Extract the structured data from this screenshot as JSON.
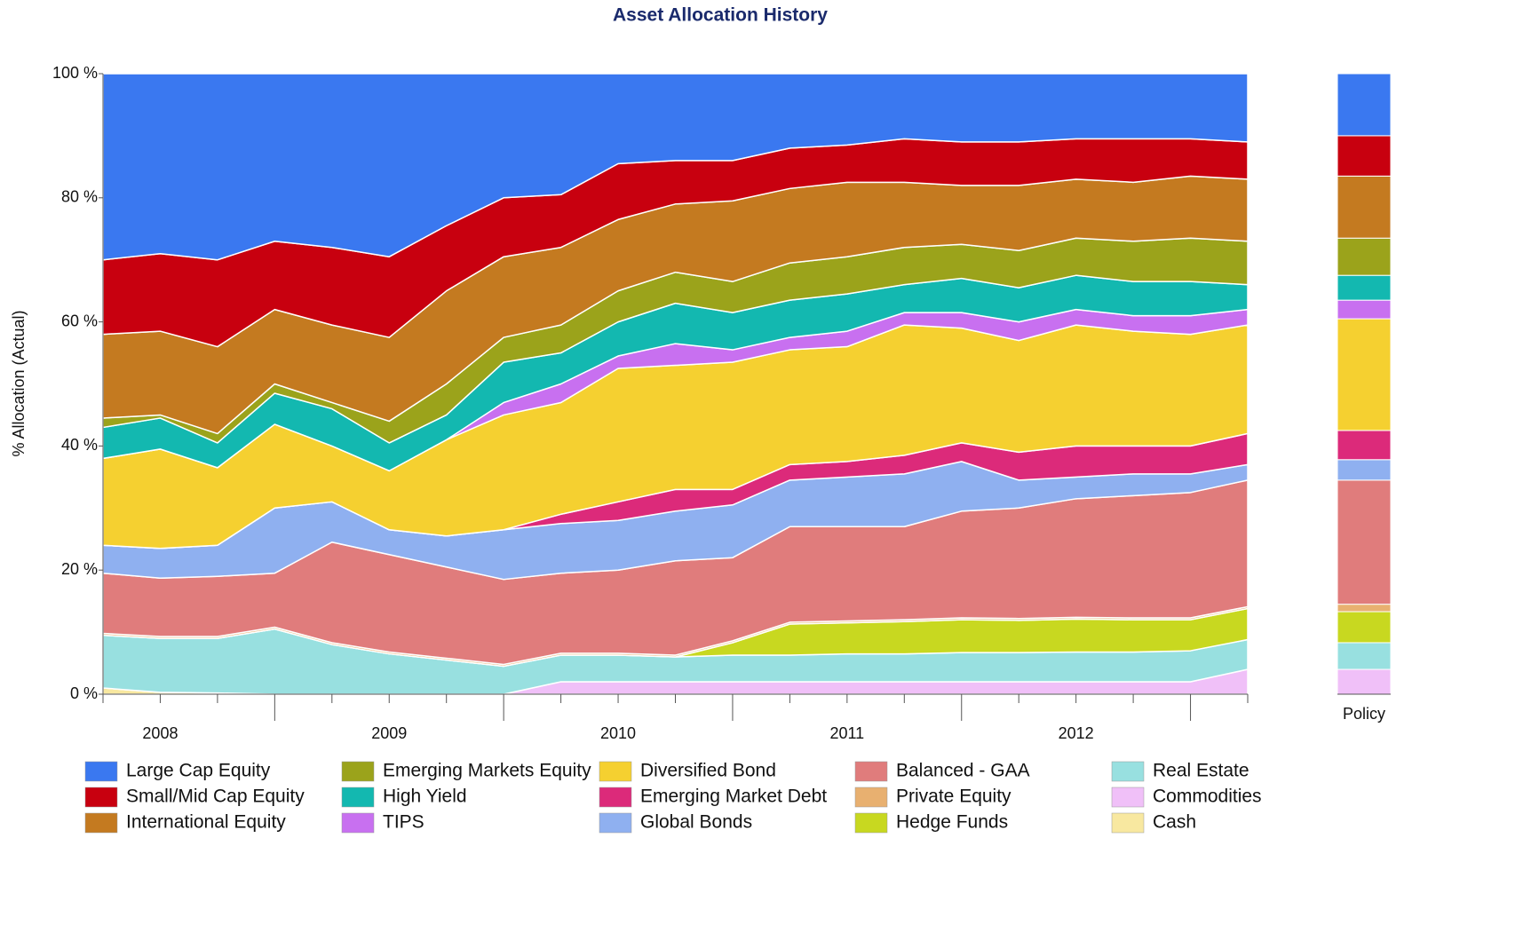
{
  "chart_data": {
    "type": "stacked-area",
    "title": "Asset Allocation History",
    "y_label": "% Allocation (Actual)",
    "categories": [
      null,
      "2008",
      null,
      null,
      null,
      "2009",
      null,
      null,
      null,
      "2010",
      null,
      null,
      null,
      "2011",
      null,
      null,
      null,
      "2012",
      null,
      null,
      null
    ],
    "ylim": [
      0,
      100
    ],
    "yticks": [
      {
        "value": 0,
        "label": "0 %"
      },
      {
        "value": 20,
        "label": "20 %"
      },
      {
        "value": 40,
        "label": "40 %"
      },
      {
        "value": 60,
        "label": "60 %"
      },
      {
        "value": 80,
        "label": "80 %"
      },
      {
        "value": 100,
        "label": "100 %"
      }
    ],
    "series": [
      {
        "name": "Large Cap Equity",
        "color": "#3a78f0",
        "values": [
          30,
          29,
          30,
          27,
          28,
          29.5,
          24.5,
          20,
          19.5,
          14.5,
          14,
          14,
          12,
          11.5,
          10.5,
          11,
          11,
          10.5,
          10.5,
          10.5,
          11
        ]
      },
      {
        "name": "Small/Mid Cap Equity",
        "color": "#c8000f",
        "values": [
          12,
          12.5,
          14,
          11,
          12.5,
          13,
          10.5,
          9.5,
          8.5,
          9,
          7,
          6.5,
          6.5,
          6,
          7,
          7,
          7,
          6.5,
          7,
          6,
          6
        ]
      },
      {
        "name": "International Equity",
        "color": "#c47a20",
        "values": [
          13.5,
          13.5,
          14,
          12,
          12.5,
          13.5,
          15,
          13,
          12.5,
          11.5,
          11,
          13,
          12,
          12,
          10.5,
          9.5,
          10.5,
          9.5,
          9.5,
          10,
          10
        ]
      },
      {
        "name": "Emerging Markets Equity",
        "color": "#9ba31b",
        "values": [
          1.5,
          0.5,
          1.5,
          1.5,
          1,
          3.5,
          5,
          4,
          4.5,
          5,
          5,
          5,
          6,
          6,
          6,
          5.5,
          6,
          6,
          6.5,
          7,
          7
        ]
      },
      {
        "name": "High Yield",
        "color": "#13b8b0",
        "values": [
          5,
          5,
          4,
          5,
          6,
          4.5,
          4,
          6.5,
          5,
          5.5,
          6.5,
          6,
          6,
          6,
          4.5,
          5.5,
          5.5,
          5.5,
          5.5,
          5.5,
          4
        ]
      },
      {
        "name": "TIPS",
        "color": "#c870f0",
        "values": [
          0,
          0,
          0,
          0,
          0,
          0,
          0,
          2,
          3,
          2,
          3.5,
          2,
          2,
          2.5,
          2,
          2.5,
          3,
          2.5,
          2.5,
          3,
          2.5
        ]
      },
      {
        "name": "Diversified Bond",
        "color": "#f5d030",
        "values": [
          14,
          16,
          12.5,
          13.5,
          9,
          9.5,
          15.5,
          18.5,
          18,
          21.5,
          20,
          20.5,
          18.5,
          18.5,
          21,
          18.5,
          18,
          19.5,
          18.5,
          18,
          17.5
        ]
      },
      {
        "name": "Emerging Market Debt",
        "color": "#dc2a7a",
        "values": [
          0,
          0,
          0,
          0,
          0,
          0,
          0,
          0,
          1.5,
          3,
          3.5,
          2.5,
          2.5,
          2.5,
          3,
          3,
          4.5,
          5,
          4.5,
          4.5,
          5
        ]
      },
      {
        "name": "Global Bonds",
        "color": "#8fb0f0",
        "values": [
          4.5,
          4.8,
          5,
          10.5,
          6.5,
          4,
          5,
          8,
          8,
          8,
          8,
          8.5,
          7.5,
          8,
          8.5,
          8,
          4.5,
          3.5,
          3.5,
          3,
          2.5
        ]
      },
      {
        "name": "Balanced - GAA",
        "color": "#e07c7c",
        "values": [
          9.7,
          9.4,
          9.7,
          8.7,
          16.2,
          15.7,
          14.7,
          13.7,
          12.9,
          13.4,
          15.2,
          13.4,
          15.4,
          15.2,
          15,
          17.2,
          17.8,
          19.1,
          19.7,
          20.2,
          20.4
        ]
      },
      {
        "name": "Private Equity",
        "color": "#e8b070",
        "values": [
          0.3,
          0.3,
          0.3,
          0.3,
          0.3,
          0.3,
          0.3,
          0.3,
          0.3,
          0.3,
          0.3,
          0.3,
          0.3,
          0.3,
          0.3,
          0.3,
          0.3,
          0.3,
          0.3,
          0.3,
          0.3
        ]
      },
      {
        "name": "Hedge Funds",
        "color": "#c8d820",
        "values": [
          0,
          0,
          0,
          0,
          0,
          0,
          0,
          0,
          0,
          0,
          0,
          2,
          5,
          5,
          5.2,
          5.3,
          5.2,
          5.3,
          5.2,
          5,
          5
        ]
      },
      {
        "name": "Real Estate",
        "color": "#98e0e0",
        "values": [
          8.5,
          8.7,
          8.8,
          10.5,
          8,
          6.5,
          5.5,
          4.5,
          4.3,
          4.3,
          4,
          4.3,
          4.3,
          4.5,
          4.5,
          4.7,
          4.7,
          4.8,
          4.8,
          5,
          4.8
        ]
      },
      {
        "name": "Commodities",
        "color": "#f0c0f8",
        "values": [
          0,
          0,
          0,
          0,
          0,
          0,
          0,
          0,
          2,
          2,
          2,
          2,
          2,
          2,
          2,
          2,
          2,
          2,
          2,
          2,
          4
        ]
      },
      {
        "name": "Cash",
        "color": "#f8e8a0",
        "values": [
          1,
          0.3,
          0.2,
          0,
          0,
          0,
          0,
          0,
          0,
          0,
          0,
          0,
          0,
          0,
          0,
          0,
          0,
          0,
          0,
          0,
          0
        ]
      }
    ],
    "policy": {
      "label": "Policy",
      "values": [
        10,
        6.5,
        10,
        6,
        4,
        3,
        18,
        4.7,
        3.3,
        20,
        1.2,
        5,
        4.3,
        4,
        0
      ]
    }
  }
}
